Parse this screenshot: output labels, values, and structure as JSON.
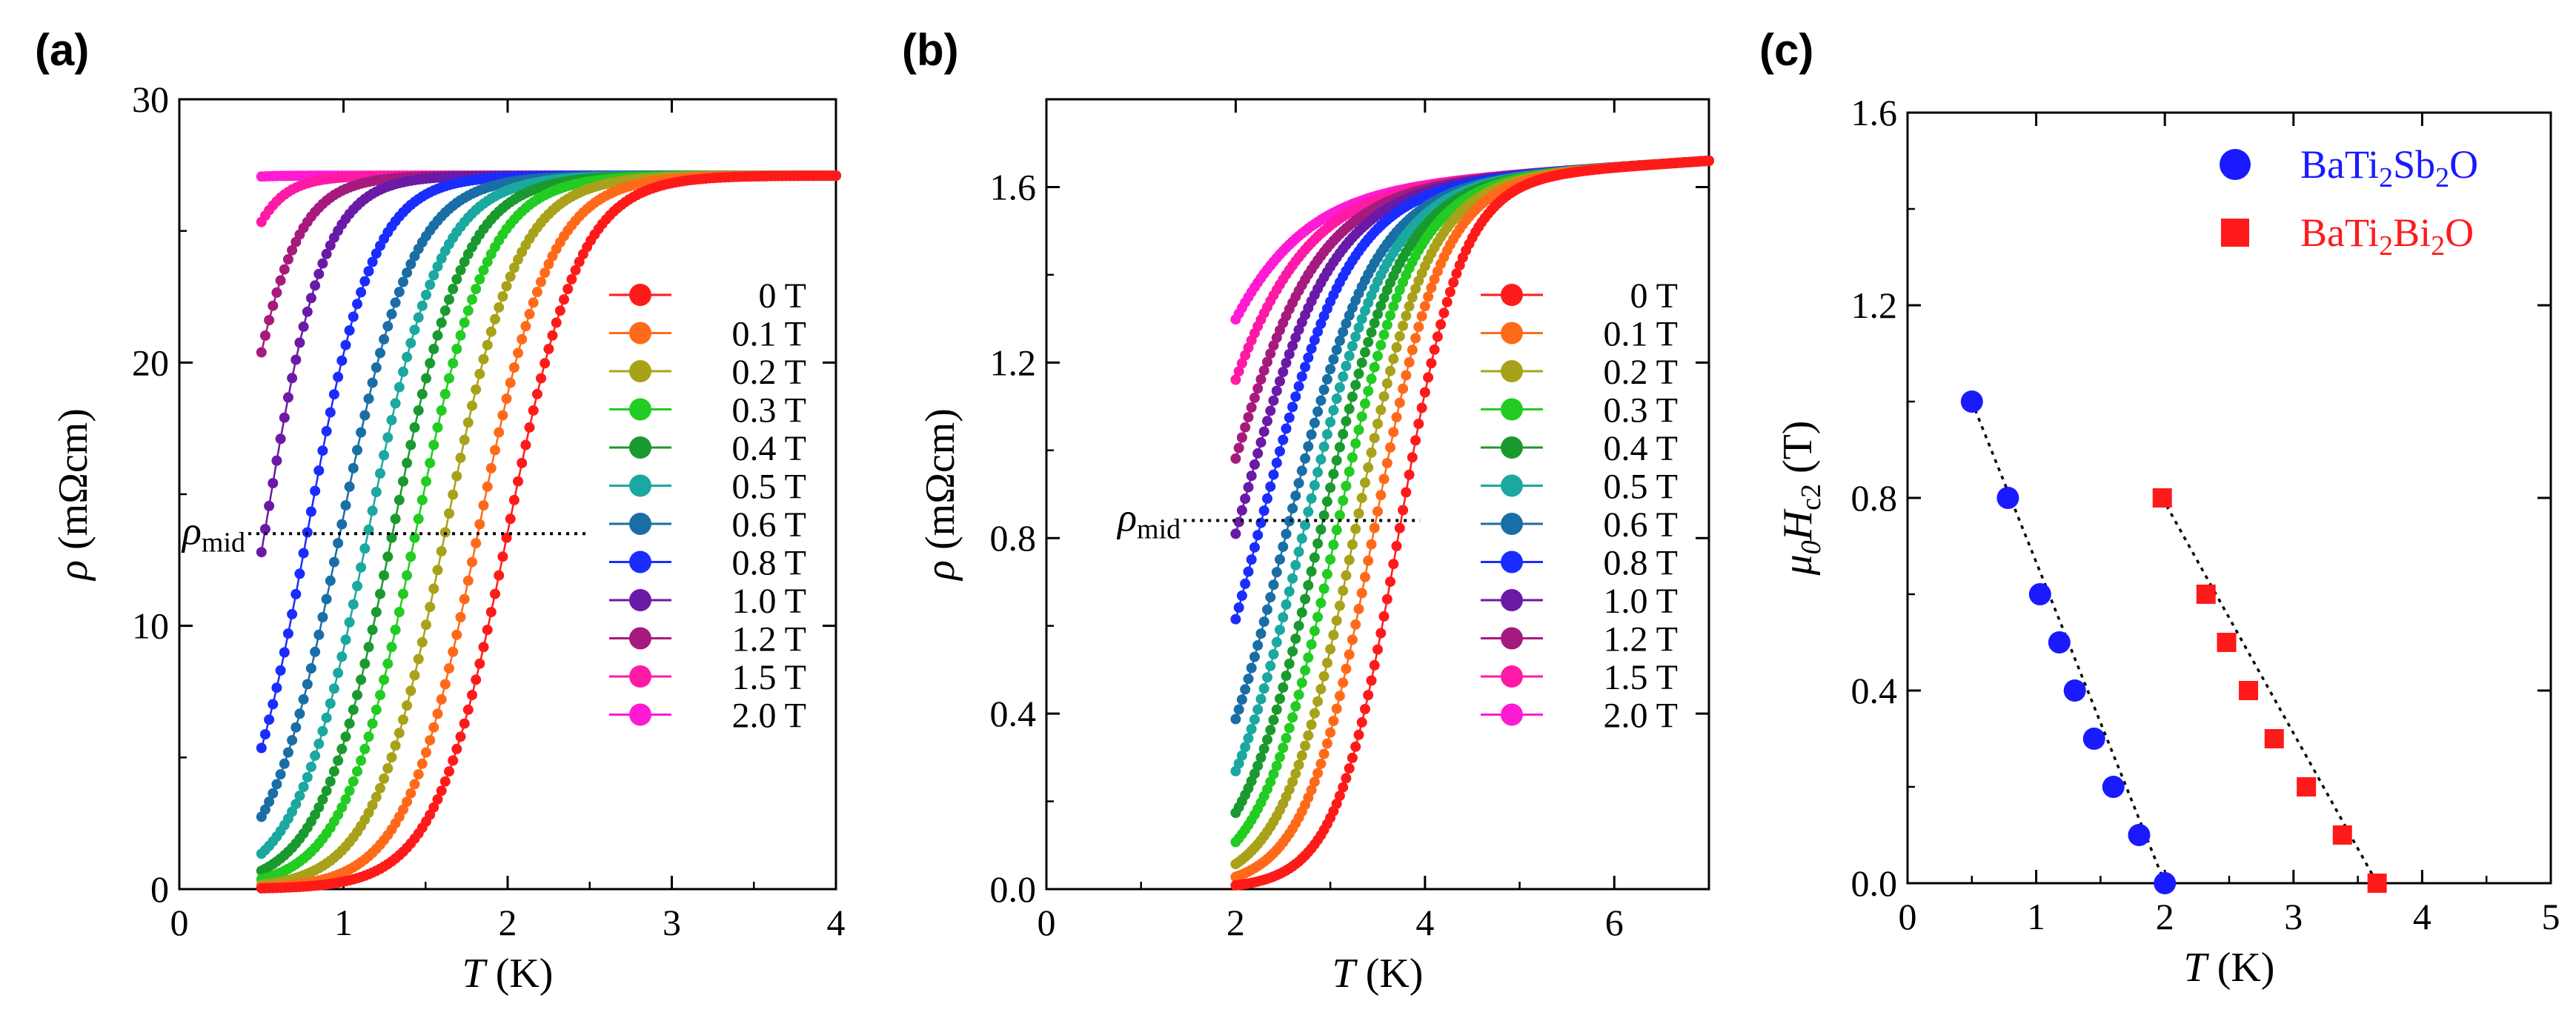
{
  "chart_data": [
    {
      "panel_label": "(a)",
      "type": "scatter",
      "xlabel_italic": "T",
      "xlabel_unit": " (K)",
      "ylabel_symbol": "ρ",
      "ylabel_unit": " (mΩcm)",
      "xlim": [
        0,
        4
      ],
      "ylim": [
        0,
        30
      ],
      "xticks": [
        0,
        1,
        2,
        3,
        4
      ],
      "yticks": [
        0,
        10,
        20,
        30
      ],
      "tick_labels_x": [
        "0",
        "1",
        "2",
        "3",
        "4"
      ],
      "tick_labels_y": [
        "0",
        "10",
        "20",
        "30"
      ],
      "rho_mid_label": "ρ",
      "rho_mid_sub": "mid",
      "rho_mid_value": 13.5,
      "rho_mid_xrange": [
        0.42,
        2.48
      ],
      "legend_position": "center-right",
      "rn": 27.1,
      "low_cut": 0.5,
      "high_cut": 4.0,
      "series": [
        {
          "name": "0 T",
          "color": "#ff1a1a",
          "tc": 2.0,
          "width": 0.22,
          "floor": 0.0
        },
        {
          "name": "0.1 T",
          "color": "#ff6a1a",
          "tc": 1.82,
          "width": 0.22,
          "floor": 0.0
        },
        {
          "name": "0.2 T",
          "color": "#a8a21a",
          "tc": 1.62,
          "width": 0.22,
          "floor": 0.0
        },
        {
          "name": "0.3 T",
          "color": "#22cc22",
          "tc": 1.44,
          "width": 0.22,
          "floor": 0.0
        },
        {
          "name": "0.4 T",
          "color": "#1a9a2e",
          "tc": 1.3,
          "width": 0.22,
          "floor": 0.0
        },
        {
          "name": "0.5 T",
          "color": "#1aa8a0",
          "tc": 1.15,
          "width": 0.22,
          "floor": 0.0
        },
        {
          "name": "0.6 T",
          "color": "#1a6ea6",
          "tc": 0.98,
          "width": 0.22,
          "floor": 0.0
        },
        {
          "name": "0.8 T",
          "color": "#1a2cff",
          "tc": 0.78,
          "width": 0.2,
          "floor": 0.0
        },
        {
          "name": "1.0 T",
          "color": "#6a1aa6",
          "tc": 0.52,
          "width": 0.18,
          "floor": 0.0
        },
        {
          "name": "1.2 T",
          "color": "#a61a7e",
          "tc": 0.3,
          "width": 0.18,
          "floor": 0.0
        },
        {
          "name": "1.5 T",
          "color": "#ff1aa6",
          "tc": 0.1,
          "width": 0.15,
          "floor": 0.0
        },
        {
          "name": "2.0 T",
          "color": "#ff1ad4",
          "tc": -0.3,
          "width": 0.12,
          "floor": 0.0
        }
      ]
    },
    {
      "panel_label": "(b)",
      "type": "scatter",
      "xlabel_italic": "T",
      "xlabel_unit": " (K)",
      "ylabel_symbol": "ρ",
      "ylabel_unit": " (mΩcm)",
      "xlim": [
        0,
        7
      ],
      "ylim": [
        0,
        1.8
      ],
      "xticks": [
        0,
        2,
        4,
        6
      ],
      "yticks": [
        0.0,
        0.4,
        0.8,
        1.2,
        1.6
      ],
      "tick_labels_x": [
        "0",
        "2",
        "4",
        "6"
      ],
      "tick_labels_y": [
        "0.0",
        "0.4",
        "0.8",
        "1.2",
        "1.6"
      ],
      "rho_mid_label": "ρ",
      "rho_mid_sub": "mid",
      "rho_mid_value": 0.84,
      "rho_mid_xrange": [
        1.45,
        3.95
      ],
      "legend_position": "center-right",
      "rn": 1.66,
      "low_cut": 2.0,
      "high_cut": 7.0,
      "series": [
        {
          "name": "0 T",
          "color": "#ff1a1a",
          "tc": 3.72,
          "width": 0.33,
          "floor": 0.0
        },
        {
          "name": "0.1 T",
          "color": "#ff6a1a",
          "tc": 3.45,
          "width": 0.36,
          "floor": 0.0
        },
        {
          "name": "0.2 T",
          "color": "#a8a21a",
          "tc": 3.25,
          "width": 0.38,
          "floor": 0.0
        },
        {
          "name": "0.3 T",
          "color": "#22cc22",
          "tc": 3.05,
          "width": 0.4,
          "floor": 0.0
        },
        {
          "name": "0.4 T",
          "color": "#1a9a2e",
          "tc": 2.88,
          "width": 0.42,
          "floor": 0.0
        },
        {
          "name": "0.5 T",
          "color": "#1aa8a0",
          "tc": 2.7,
          "width": 0.44,
          "floor": 0.0
        },
        {
          "name": "0.6 T",
          "color": "#1a6ea6",
          "tc": 2.52,
          "width": 0.46,
          "floor": 0.0
        },
        {
          "name": "0.8 T",
          "color": "#1a2cff",
          "tc": 2.22,
          "width": 0.48,
          "floor": 0.0
        },
        {
          "name": "1.0 T",
          "color": "#6a1aa6",
          "tc": 1.98,
          "width": 0.5,
          "floor": 0.0
        },
        {
          "name": "1.2 T",
          "color": "#a61a7e",
          "tc": 1.75,
          "width": 0.52,
          "floor": 0.0
        },
        {
          "name": "1.5 T",
          "color": "#ff1aa6",
          "tc": 1.45,
          "width": 0.55,
          "floor": 0.0
        },
        {
          "name": "2.0 T",
          "color": "#ff1ad4",
          "tc": 1.1,
          "width": 0.6,
          "floor": 0.0
        }
      ]
    },
    {
      "panel_label": "(c)",
      "type": "scatter",
      "xlabel_italic": "T",
      "xlabel_unit": " (K)",
      "ylabel_mu": "μ",
      "ylabel_mu_sub": "0",
      "ylabel_H": "H",
      "ylabel_H_sub": "c2",
      "ylabel_unit": " (T)",
      "xlim": [
        0,
        5
      ],
      "ylim": [
        0,
        1.6
      ],
      "xticks": [
        0,
        1,
        2,
        3,
        4,
        5
      ],
      "yticks": [
        0.0,
        0.4,
        0.8,
        1.2,
        1.6
      ],
      "tick_labels_x": [
        "0",
        "1",
        "2",
        "3",
        "4",
        "5"
      ],
      "tick_labels_y": [
        "0.0",
        "0.4",
        "0.8",
        "1.2",
        "1.6"
      ],
      "legend_position": "top-right",
      "series": [
        {
          "name_parts": [
            "BaTi",
            "2",
            "Sb",
            "2",
            "O"
          ],
          "marker": "circle",
          "color": "#1a1aff",
          "x": [
            0.5,
            0.78,
            1.03,
            1.18,
            1.3,
            1.45,
            1.6,
            1.8,
            2.0
          ],
          "y": [
            1.0,
            0.8,
            0.6,
            0.5,
            0.4,
            0.3,
            0.2,
            0.1,
            0.0
          ],
          "fit_x": [
            0.5,
            2.0
          ],
          "fit_y": [
            1.0,
            0.0
          ]
        },
        {
          "name_parts": [
            "BaTi",
            "2",
            "Bi",
            "2",
            "O"
          ],
          "marker": "square",
          "color": "#ff1a1a",
          "x": [
            1.98,
            2.32,
            2.48,
            2.65,
            2.85,
            3.1,
            3.38,
            3.65
          ],
          "y": [
            0.8,
            0.6,
            0.5,
            0.4,
            0.3,
            0.2,
            0.1,
            0.0
          ],
          "fit_x": [
            1.98,
            3.65
          ],
          "fit_y": [
            0.8,
            0.0
          ]
        }
      ]
    }
  ]
}
